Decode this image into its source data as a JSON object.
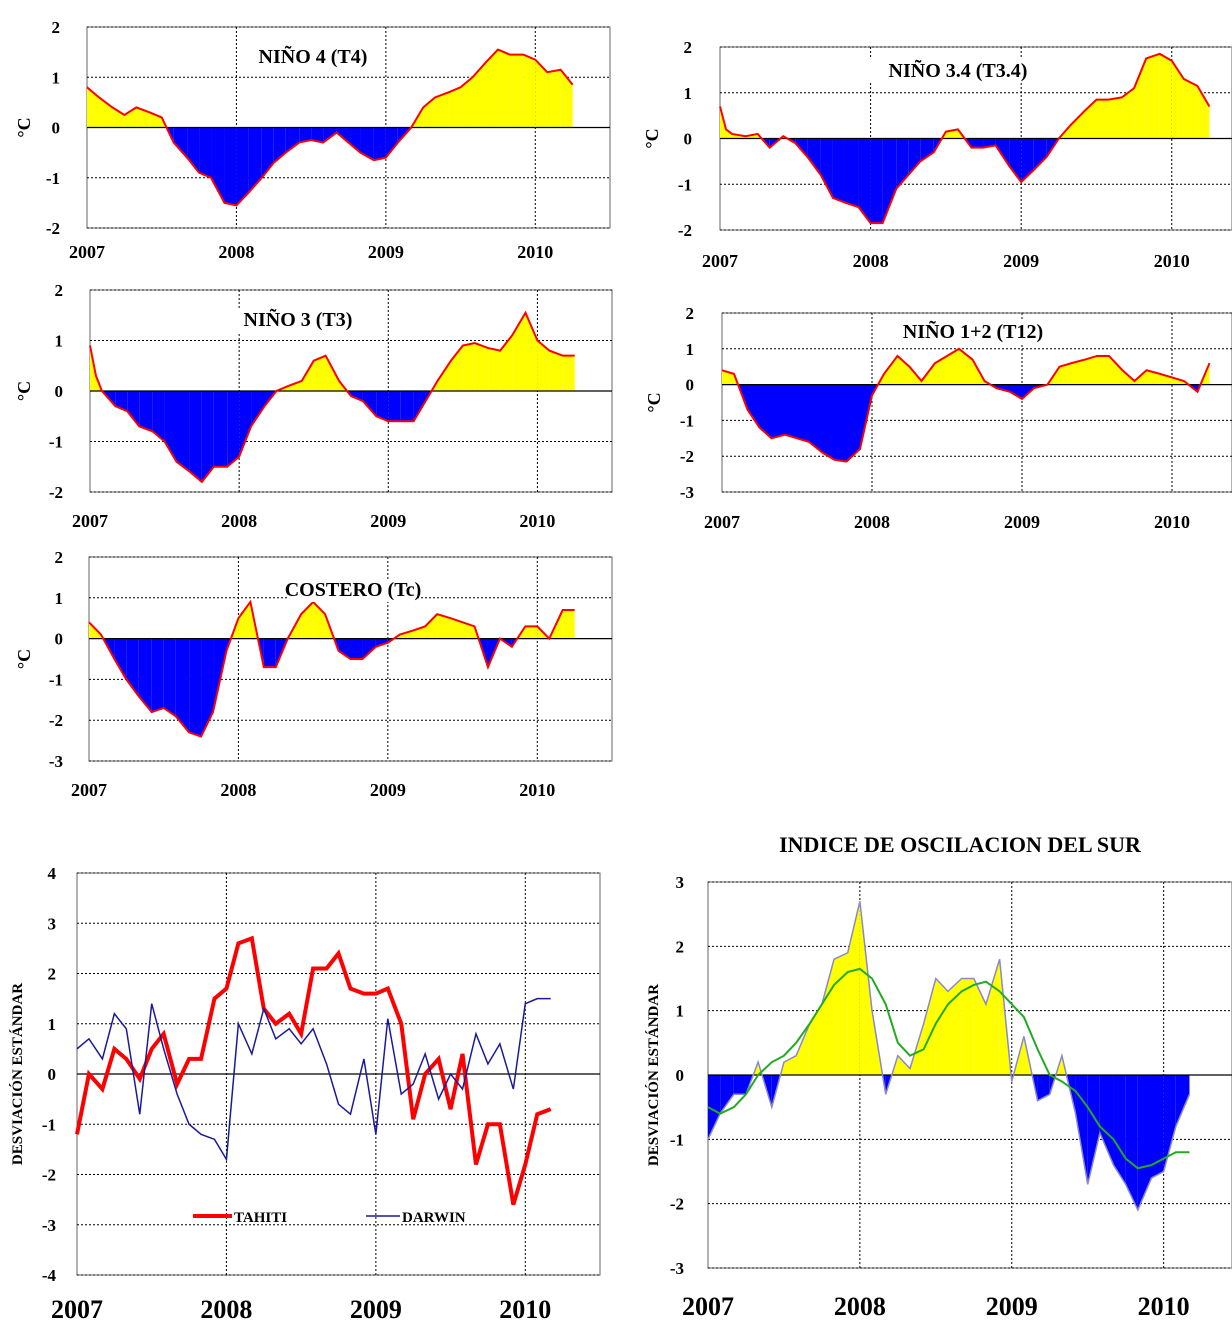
{
  "colors": {
    "positive": "#ffff00",
    "negative": "#0000ff",
    "line": "#ff0000",
    "tahiti": "#ff0000",
    "darwin": "#1a1a99",
    "smooth": "#22aa22",
    "soi_line": "#8888cc",
    "grid": "#000000"
  },
  "chart_data": [
    {
      "type": "area",
      "title": "NIÑO 4 (T4)",
      "ylabel": "°C",
      "ylim": [
        -2,
        2
      ],
      "yticks": [
        "2",
        "1",
        "0",
        "-1",
        "-2"
      ],
      "xticks": [
        "2007",
        "2008",
        "2009",
        "2010"
      ],
      "x": [
        2007.0,
        2007.08,
        2007.17,
        2007.25,
        2007.33,
        2007.42,
        2007.5,
        2007.58,
        2007.67,
        2007.75,
        2007.83,
        2007.92,
        2008.0,
        2008.08,
        2008.17,
        2008.25,
        2008.33,
        2008.42,
        2008.5,
        2008.58,
        2008.67,
        2008.75,
        2008.83,
        2008.92,
        2009.0,
        2009.08,
        2009.17,
        2009.25,
        2009.33,
        2009.42,
        2009.5,
        2009.58,
        2009.67,
        2009.75,
        2009.83,
        2009.92,
        2010.0,
        2010.08,
        2010.17,
        2010.25
      ],
      "y": [
        0.8,
        0.6,
        0.4,
        0.25,
        0.4,
        0.3,
        0.2,
        -0.3,
        -0.6,
        -0.9,
        -1.0,
        -1.5,
        -1.55,
        -1.3,
        -1.0,
        -0.7,
        -0.5,
        -0.3,
        -0.25,
        -0.3,
        -0.1,
        -0.3,
        -0.5,
        -0.65,
        -0.6,
        -0.3,
        0.0,
        0.4,
        0.6,
        0.7,
        0.8,
        1.0,
        1.3,
        1.55,
        1.45,
        1.45,
        1.35,
        1.1,
        1.15,
        0.85
      ]
    },
    {
      "type": "area",
      "title": "NIÑO 3.4 (T3.4)",
      "ylabel": "°C",
      "ylim": [
        -2,
        2
      ],
      "yticks": [
        "2",
        "1",
        "0",
        "-1",
        "-2"
      ],
      "xticks": [
        "2007",
        "2008",
        "2009",
        "2010"
      ],
      "x": [
        2007.0,
        2007.04,
        2007.08,
        2007.17,
        2007.25,
        2007.33,
        2007.42,
        2007.5,
        2007.58,
        2007.67,
        2007.75,
        2007.83,
        2007.92,
        2008.0,
        2008.08,
        2008.17,
        2008.25,
        2008.33,
        2008.42,
        2008.5,
        2008.58,
        2008.67,
        2008.75,
        2008.83,
        2008.92,
        2009.0,
        2009.08,
        2009.17,
        2009.25,
        2009.33,
        2009.42,
        2009.5,
        2009.58,
        2009.67,
        2009.75,
        2009.83,
        2009.92,
        2010.0,
        2010.08,
        2010.17,
        2010.25
      ],
      "y": [
        0.7,
        0.2,
        0.1,
        0.05,
        0.1,
        -0.2,
        0.05,
        -0.1,
        -0.4,
        -0.8,
        -1.3,
        -1.4,
        -1.5,
        -1.85,
        -1.85,
        -1.1,
        -0.8,
        -0.5,
        -0.3,
        0.15,
        0.2,
        -0.2,
        -0.2,
        -0.15,
        -0.6,
        -0.95,
        -0.7,
        -0.4,
        0.0,
        0.3,
        0.6,
        0.85,
        0.85,
        0.9,
        1.1,
        1.75,
        1.85,
        1.7,
        1.3,
        1.15,
        0.7
      ]
    },
    {
      "type": "area",
      "title": "NIÑO 3 (T3)",
      "ylabel": "°C",
      "ylim": [
        -2,
        2
      ],
      "yticks": [
        "2",
        "1",
        "0",
        "-1",
        "-2"
      ],
      "xticks": [
        "2007",
        "2008",
        "2009",
        "2010"
      ],
      "x": [
        2007.0,
        2007.04,
        2007.08,
        2007.17,
        2007.25,
        2007.33,
        2007.42,
        2007.5,
        2007.58,
        2007.67,
        2007.75,
        2007.83,
        2007.92,
        2008.0,
        2008.08,
        2008.17,
        2008.25,
        2008.33,
        2008.42,
        2008.5,
        2008.58,
        2008.67,
        2008.75,
        2008.83,
        2008.92,
        2009.0,
        2009.08,
        2009.17,
        2009.25,
        2009.33,
        2009.42,
        2009.5,
        2009.58,
        2009.67,
        2009.75,
        2009.83,
        2009.92,
        2010.0,
        2010.08,
        2010.17,
        2010.25
      ],
      "y": [
        0.9,
        0.3,
        0.0,
        -0.3,
        -0.4,
        -0.7,
        -0.8,
        -1.0,
        -1.4,
        -1.6,
        -1.8,
        -1.5,
        -1.5,
        -1.3,
        -0.7,
        -0.3,
        0.0,
        0.1,
        0.2,
        0.6,
        0.7,
        0.2,
        -0.1,
        -0.2,
        -0.5,
        -0.6,
        -0.6,
        -0.6,
        -0.2,
        0.2,
        0.6,
        0.9,
        0.95,
        0.85,
        0.8,
        1.1,
        1.55,
        1.0,
        0.8,
        0.7,
        0.7
      ]
    },
    {
      "type": "area",
      "title": "NIÑO 1+2 (T12)",
      "ylabel": "°C",
      "ylim": [
        -3,
        2
      ],
      "yticks": [
        "2",
        "1",
        "0",
        "-1",
        "-2",
        "-3"
      ],
      "xticks": [
        "2007",
        "2008",
        "2009",
        "2010"
      ],
      "x": [
        2007.0,
        2007.08,
        2007.17,
        2007.25,
        2007.33,
        2007.42,
        2007.5,
        2007.58,
        2007.67,
        2007.75,
        2007.83,
        2007.92,
        2008.0,
        2008.08,
        2008.17,
        2008.25,
        2008.33,
        2008.42,
        2008.5,
        2008.58,
        2008.67,
        2008.75,
        2008.83,
        2008.92,
        2009.0,
        2009.08,
        2009.17,
        2009.25,
        2009.33,
        2009.42,
        2009.5,
        2009.58,
        2009.67,
        2009.75,
        2009.83,
        2009.92,
        2010.0,
        2010.08,
        2010.17,
        2010.25
      ],
      "y": [
        0.4,
        0.3,
        -0.7,
        -1.2,
        -1.5,
        -1.4,
        -1.5,
        -1.6,
        -1.9,
        -2.1,
        -2.15,
        -1.8,
        -0.3,
        0.3,
        0.8,
        0.5,
        0.1,
        0.6,
        0.8,
        1.0,
        0.7,
        0.1,
        -0.1,
        -0.2,
        -0.4,
        -0.1,
        0.0,
        0.5,
        0.6,
        0.7,
        0.8,
        0.8,
        0.4,
        0.1,
        0.4,
        0.3,
        0.2,
        0.1,
        -0.2,
        0.6
      ]
    },
    {
      "type": "area",
      "title": "COSTERO (Tc)",
      "ylabel": "°C",
      "ylim": [
        -3,
        2
      ],
      "yticks": [
        "2",
        "1",
        "0",
        "-1",
        "-2",
        "-3"
      ],
      "xticks": [
        "2007",
        "2008",
        "2009",
        "2010"
      ],
      "x": [
        2007.0,
        2007.08,
        2007.17,
        2007.25,
        2007.33,
        2007.42,
        2007.5,
        2007.58,
        2007.67,
        2007.75,
        2007.83,
        2007.92,
        2008.0,
        2008.08,
        2008.17,
        2008.25,
        2008.33,
        2008.42,
        2008.5,
        2008.58,
        2008.67,
        2008.75,
        2008.83,
        2008.92,
        2009.0,
        2009.08,
        2009.17,
        2009.25,
        2009.33,
        2009.42,
        2009.5,
        2009.58,
        2009.67,
        2009.75,
        2009.83,
        2009.92,
        2010.0,
        2010.08,
        2010.17,
        2010.25
      ],
      "y": [
        0.4,
        0.1,
        -0.5,
        -1.0,
        -1.4,
        -1.8,
        -1.7,
        -1.9,
        -2.3,
        -2.4,
        -1.8,
        -0.3,
        0.5,
        0.9,
        -0.7,
        -0.7,
        0.0,
        0.6,
        0.9,
        0.6,
        -0.3,
        -0.5,
        -0.5,
        -0.2,
        -0.1,
        0.1,
        0.2,
        0.3,
        0.6,
        0.5,
        0.4,
        0.3,
        -0.7,
        0.0,
        -0.2,
        0.3,
        0.3,
        0.0,
        0.7,
        0.7
      ]
    },
    {
      "type": "line",
      "title": "",
      "ylabel": "DESVIACIÓN ESTÁNDAR",
      "ylim": [
        -4,
        4
      ],
      "yticks": [
        "4",
        "3",
        "2",
        "1",
        "0",
        "-1",
        "-2",
        "-3",
        "-4"
      ],
      "xticks": [
        "2007",
        "2008",
        "2009",
        "2010"
      ],
      "series": [
        {
          "name": "TAHITI",
          "x": [
            2007.0,
            2007.08,
            2007.17,
            2007.25,
            2007.33,
            2007.42,
            2007.5,
            2007.58,
            2007.67,
            2007.75,
            2007.83,
            2007.92,
            2008.0,
            2008.08,
            2008.17,
            2008.25,
            2008.33,
            2008.42,
            2008.5,
            2008.58,
            2008.67,
            2008.75,
            2008.83,
            2008.92,
            2009.0,
            2009.08,
            2009.17,
            2009.25,
            2009.33,
            2009.42,
            2009.5,
            2009.58,
            2009.67,
            2009.75,
            2009.83,
            2009.92,
            2010.0,
            2010.08,
            2010.17
          ],
          "y": [
            -1.2,
            0.0,
            -0.3,
            0.5,
            0.3,
            -0.1,
            0.5,
            0.8,
            -0.2,
            0.3,
            0.3,
            1.5,
            1.7,
            2.6,
            2.7,
            1.3,
            1.0,
            1.2,
            0.8,
            2.1,
            2.1,
            2.4,
            1.7,
            1.6,
            1.6,
            1.7,
            1.0,
            -0.9,
            0.0,
            0.3,
            -0.7,
            0.4,
            -1.8,
            -1.0,
            -1.0,
            -2.6,
            -1.8,
            -0.8,
            -0.7
          ]
        },
        {
          "name": "DARWIN",
          "x": [
            2007.0,
            2007.08,
            2007.17,
            2007.25,
            2007.33,
            2007.42,
            2007.5,
            2007.58,
            2007.67,
            2007.75,
            2007.83,
            2007.92,
            2008.0,
            2008.08,
            2008.17,
            2008.25,
            2008.33,
            2008.42,
            2008.5,
            2008.58,
            2008.67,
            2008.75,
            2008.83,
            2008.92,
            2009.0,
            2009.08,
            2009.17,
            2009.25,
            2009.33,
            2009.42,
            2009.5,
            2009.58,
            2009.67,
            2009.75,
            2009.83,
            2009.92,
            2010.0,
            2010.08,
            2010.17
          ],
          "y": [
            0.5,
            0.7,
            0.3,
            1.2,
            0.9,
            -0.8,
            1.4,
            0.5,
            -0.4,
            -1.0,
            -1.2,
            -1.3,
            -1.7,
            1.0,
            0.4,
            1.3,
            0.7,
            0.9,
            0.6,
            0.9,
            0.2,
            -0.6,
            -0.8,
            0.3,
            -1.2,
            1.1,
            -0.4,
            -0.2,
            0.4,
            -0.5,
            0.0,
            -0.3,
            0.8,
            0.2,
            0.6,
            -0.3,
            1.4,
            1.5,
            1.5
          ]
        }
      ],
      "legend": "bottom"
    },
    {
      "type": "area",
      "title": "INDICE DE OSCILACION DEL SUR",
      "ylabel": "DESVIACIÓN ESTÁNDAR",
      "ylim": [
        -3,
        3
      ],
      "yticks": [
        "3",
        "2",
        "1",
        "0",
        "-1",
        "-2",
        "-3"
      ],
      "xticks": [
        "2007",
        "2008",
        "2009",
        "2010"
      ],
      "x": [
        2007.0,
        2007.08,
        2007.17,
        2007.25,
        2007.33,
        2007.42,
        2007.5,
        2007.58,
        2007.67,
        2007.75,
        2007.83,
        2007.92,
        2008.0,
        2008.08,
        2008.17,
        2008.25,
        2008.33,
        2008.42,
        2008.5,
        2008.58,
        2008.67,
        2008.75,
        2008.83,
        2008.92,
        2009.0,
        2009.08,
        2009.17,
        2009.25,
        2009.33,
        2009.42,
        2009.5,
        2009.58,
        2009.67,
        2009.75,
        2009.83,
        2009.92,
        2010.0,
        2010.08,
        2010.17
      ],
      "y": [
        -1.0,
        -0.6,
        -0.3,
        -0.3,
        0.2,
        -0.5,
        0.2,
        0.3,
        0.8,
        1.1,
        1.8,
        1.9,
        2.7,
        1.0,
        -0.3,
        0.3,
        0.1,
        0.8,
        1.5,
        1.3,
        1.5,
        1.5,
        1.1,
        1.8,
        -0.1,
        0.6,
        -0.4,
        -0.3,
        0.3,
        -0.6,
        -1.7,
        -0.9,
        -1.4,
        -1.7,
        -2.1,
        -1.6,
        -1.5,
        -0.8,
        -0.3
      ],
      "smooth": [
        -0.5,
        -0.6,
        -0.5,
        -0.3,
        0.0,
        0.2,
        0.3,
        0.5,
        0.8,
        1.1,
        1.4,
        1.6,
        1.65,
        1.5,
        1.1,
        0.5,
        0.3,
        0.4,
        0.8,
        1.1,
        1.3,
        1.4,
        1.45,
        1.3,
        1.1,
        0.9,
        0.4,
        0.0,
        -0.1,
        -0.25,
        -0.5,
        -0.8,
        -1.0,
        -1.3,
        -1.45,
        -1.4,
        -1.3,
        -1.2,
        -1.2
      ]
    }
  ]
}
